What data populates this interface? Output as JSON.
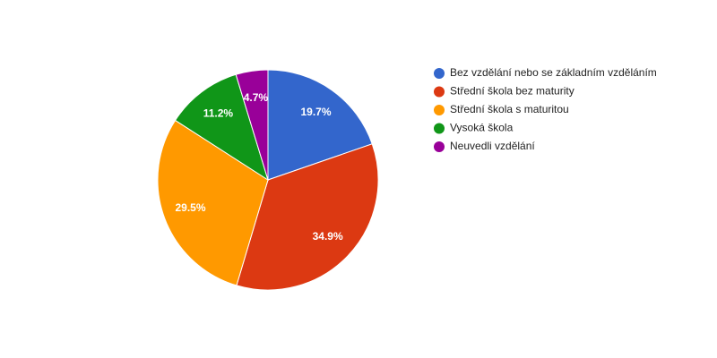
{
  "chart_data": {
    "type": "pie",
    "categories": [
      "Bez vzdělání nebo se základním vzděláním",
      "Střední škola bez maturity",
      "Střední škola s maturitou",
      "Vysoká škola",
      "Neuvedli vzdělání"
    ],
    "values": [
      19.7,
      34.9,
      29.5,
      11.2,
      4.7
    ],
    "value_labels": [
      "19.7%",
      "34.9%",
      "29.5%",
      "11.2%",
      "4.7%"
    ],
    "colors": [
      "#3366cc",
      "#dc3912",
      "#ff9900",
      "#109618",
      "#990099"
    ],
    "legend": "right"
  }
}
